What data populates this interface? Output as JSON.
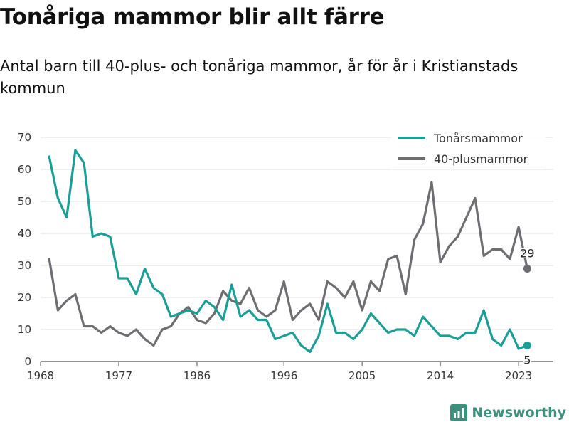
{
  "title": "Tonåriga mammor blir allt färre",
  "subtitle": "Antal barn till 40-plus- och tonåriga mammor, år för år i Kristianstads kommun",
  "brand": {
    "name": "Newsworthy",
    "icon": "newsworthy-logo-icon",
    "color": "#3f8f7f"
  },
  "chart_data": {
    "type": "line",
    "x": [
      1969,
      1970,
      1971,
      1972,
      1973,
      1974,
      1975,
      1976,
      1977,
      1978,
      1979,
      1980,
      1981,
      1982,
      1983,
      1984,
      1985,
      1986,
      1987,
      1988,
      1989,
      1990,
      1991,
      1992,
      1993,
      1994,
      1995,
      1996,
      1997,
      1998,
      1999,
      2000,
      2001,
      2002,
      2003,
      2004,
      2005,
      2006,
      2007,
      2008,
      2009,
      2010,
      2011,
      2012,
      2013,
      2014,
      2015,
      2016,
      2017,
      2018,
      2019,
      2020,
      2021,
      2022,
      2023,
      2024
    ],
    "series": [
      {
        "name": "Tonårsmammor",
        "color": "#1a9e95",
        "values": [
          64,
          51,
          45,
          66,
          62,
          39,
          40,
          39,
          26,
          26,
          21,
          29,
          23,
          21,
          14,
          15,
          16,
          15,
          19,
          17,
          13,
          24,
          14,
          16,
          13,
          13,
          7,
          8,
          9,
          5,
          3,
          8,
          18,
          9,
          9,
          7,
          10,
          15,
          12,
          9,
          10,
          10,
          8,
          14,
          11,
          8,
          8,
          7,
          9,
          9,
          16,
          7,
          5,
          10,
          4,
          5
        ],
        "end_label": "5"
      },
      {
        "name": "40-plusmammor",
        "color": "#6e6e72",
        "values": [
          32,
          16,
          19,
          21,
          11,
          11,
          9,
          11,
          9,
          8,
          10,
          7,
          5,
          10,
          11,
          15,
          17,
          13,
          12,
          15,
          22,
          19,
          18,
          23,
          16,
          14,
          16,
          25,
          13,
          16,
          18,
          13,
          25,
          23,
          20,
          25,
          16,
          25,
          22,
          32,
          33,
          21,
          38,
          43,
          56,
          31,
          36,
          39,
          45,
          51,
          33,
          35,
          35,
          32,
          42,
          29
        ],
        "end_label": "29"
      }
    ],
    "xticks": [
      1968,
      1977,
      1986,
      1996,
      2005,
      2014,
      2023
    ],
    "yticks": [
      0,
      10,
      20,
      30,
      40,
      50,
      60,
      70
    ],
    "xlim": [
      1968,
      2027
    ],
    "ylim": [
      0,
      70
    ],
    "xlabel": "",
    "ylabel": "",
    "grid": "horizontal",
    "legend": "top-right"
  }
}
